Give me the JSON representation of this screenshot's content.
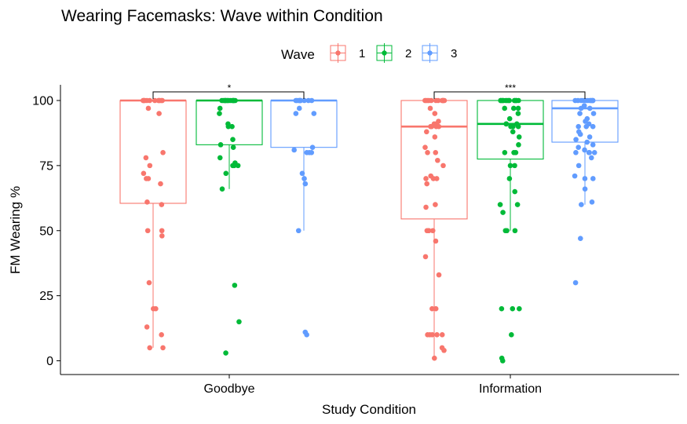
{
  "chart_data": {
    "type": "box",
    "title": "Wearing Facemasks: Wave within Condition",
    "xlabel": "Study Condition",
    "ylabel": "FM Wearing %",
    "categories": [
      "Goodbye",
      "Information"
    ],
    "ylim": [
      -5,
      105
    ],
    "yticks": [
      0,
      25,
      50,
      75,
      100
    ],
    "legend": {
      "title": "Wave",
      "position": "top",
      "labels": [
        "1",
        "2",
        "3"
      ]
    },
    "colors": [
      "#F8766D",
      "#00BA38",
      "#619CFF"
    ],
    "grid": false,
    "significance": [
      {
        "category": "Goodbye",
        "label": "*"
      },
      {
        "category": "Information",
        "label": "***"
      }
    ],
    "series": [
      {
        "name": "1",
        "boxes": [
          {
            "category": "Goodbye",
            "min": 5,
            "q1": 60.5,
            "median": 100,
            "q3": 100,
            "max": 100,
            "points": [
              100,
              100,
              100,
              100,
              100,
              100,
              100,
              100,
              100,
              100,
              100,
              100,
              97,
              95,
              80,
              78,
              75,
              72,
              70,
              70,
              68,
              61,
              60,
              50,
              50,
              48,
              30,
              20,
              20,
              13,
              10,
              5,
              5
            ]
          },
          {
            "category": "Information",
            "min": 1,
            "q1": 54.5,
            "median": 90,
            "q3": 100,
            "max": 100,
            "points": [
              100,
              100,
              100,
              100,
              100,
              100,
              100,
              100,
              100,
              100,
              100,
              100,
              97,
              95,
              92,
              91,
              91,
              90,
              90,
              90,
              90,
              88,
              86,
              82,
              80,
              80,
              77,
              75,
              71,
              70,
              70,
              70,
              68,
              60,
              59,
              50,
              50,
              50,
              50,
              46,
              40,
              33,
              20,
              20,
              10,
              10,
              10,
              10,
              10,
              5,
              4,
              1
            ]
          }
        ]
      },
      {
        "name": "2",
        "boxes": [
          {
            "category": "Goodbye",
            "min": 66,
            "q1": 83,
            "median": 100,
            "q3": 100,
            "max": 100,
            "points": [
              100,
              100,
              100,
              100,
              100,
              100,
              100,
              100,
              100,
              100,
              100,
              100,
              100,
              100,
              97,
              95,
              91,
              90,
              90,
              85,
              83,
              82,
              78,
              76,
              75,
              75,
              75,
              72,
              66,
              29,
              15,
              3
            ]
          },
          {
            "category": "Information",
            "min": 50,
            "q1": 77.5,
            "median": 91,
            "q3": 100,
            "max": 100,
            "points": [
              100,
              100,
              100,
              100,
              100,
              100,
              100,
              100,
              100,
              100,
              100,
              100,
              100,
              100,
              97,
              97,
              97,
              95,
              93,
              91,
              91,
              91,
              90,
              90,
              90,
              88,
              86,
              83,
              80,
              80,
              80,
              75,
              75,
              70,
              65,
              60,
              60,
              57,
              50,
              50,
              50,
              20,
              20,
              20,
              10,
              1,
              0
            ]
          }
        ]
      },
      {
        "name": "3",
        "boxes": [
          {
            "category": "Goodbye",
            "min": 50,
            "q1": 82,
            "median": 100,
            "q3": 100,
            "max": 100,
            "points": [
              100,
              100,
              100,
              100,
              100,
              100,
              100,
              100,
              100,
              100,
              97,
              95,
              95,
              82,
              81,
              80,
              80,
              80,
              72,
              70,
              68,
              50,
              11,
              10
            ]
          },
          {
            "category": "Information",
            "min": 60,
            "q1": 84,
            "median": 97,
            "q3": 100,
            "max": 100,
            "points": [
              100,
              100,
              100,
              100,
              100,
              100,
              100,
              100,
              100,
              100,
              100,
              100,
              98,
              97,
              97,
              95,
              95,
              93,
              92,
              91,
              90,
              90,
              90,
              88,
              87,
              86,
              85,
              84,
              83,
              82,
              81,
              80,
              80,
              80,
              80,
              78,
              75,
              71,
              70,
              70,
              66,
              61,
              60,
              47,
              30
            ]
          }
        ]
      }
    ]
  }
}
